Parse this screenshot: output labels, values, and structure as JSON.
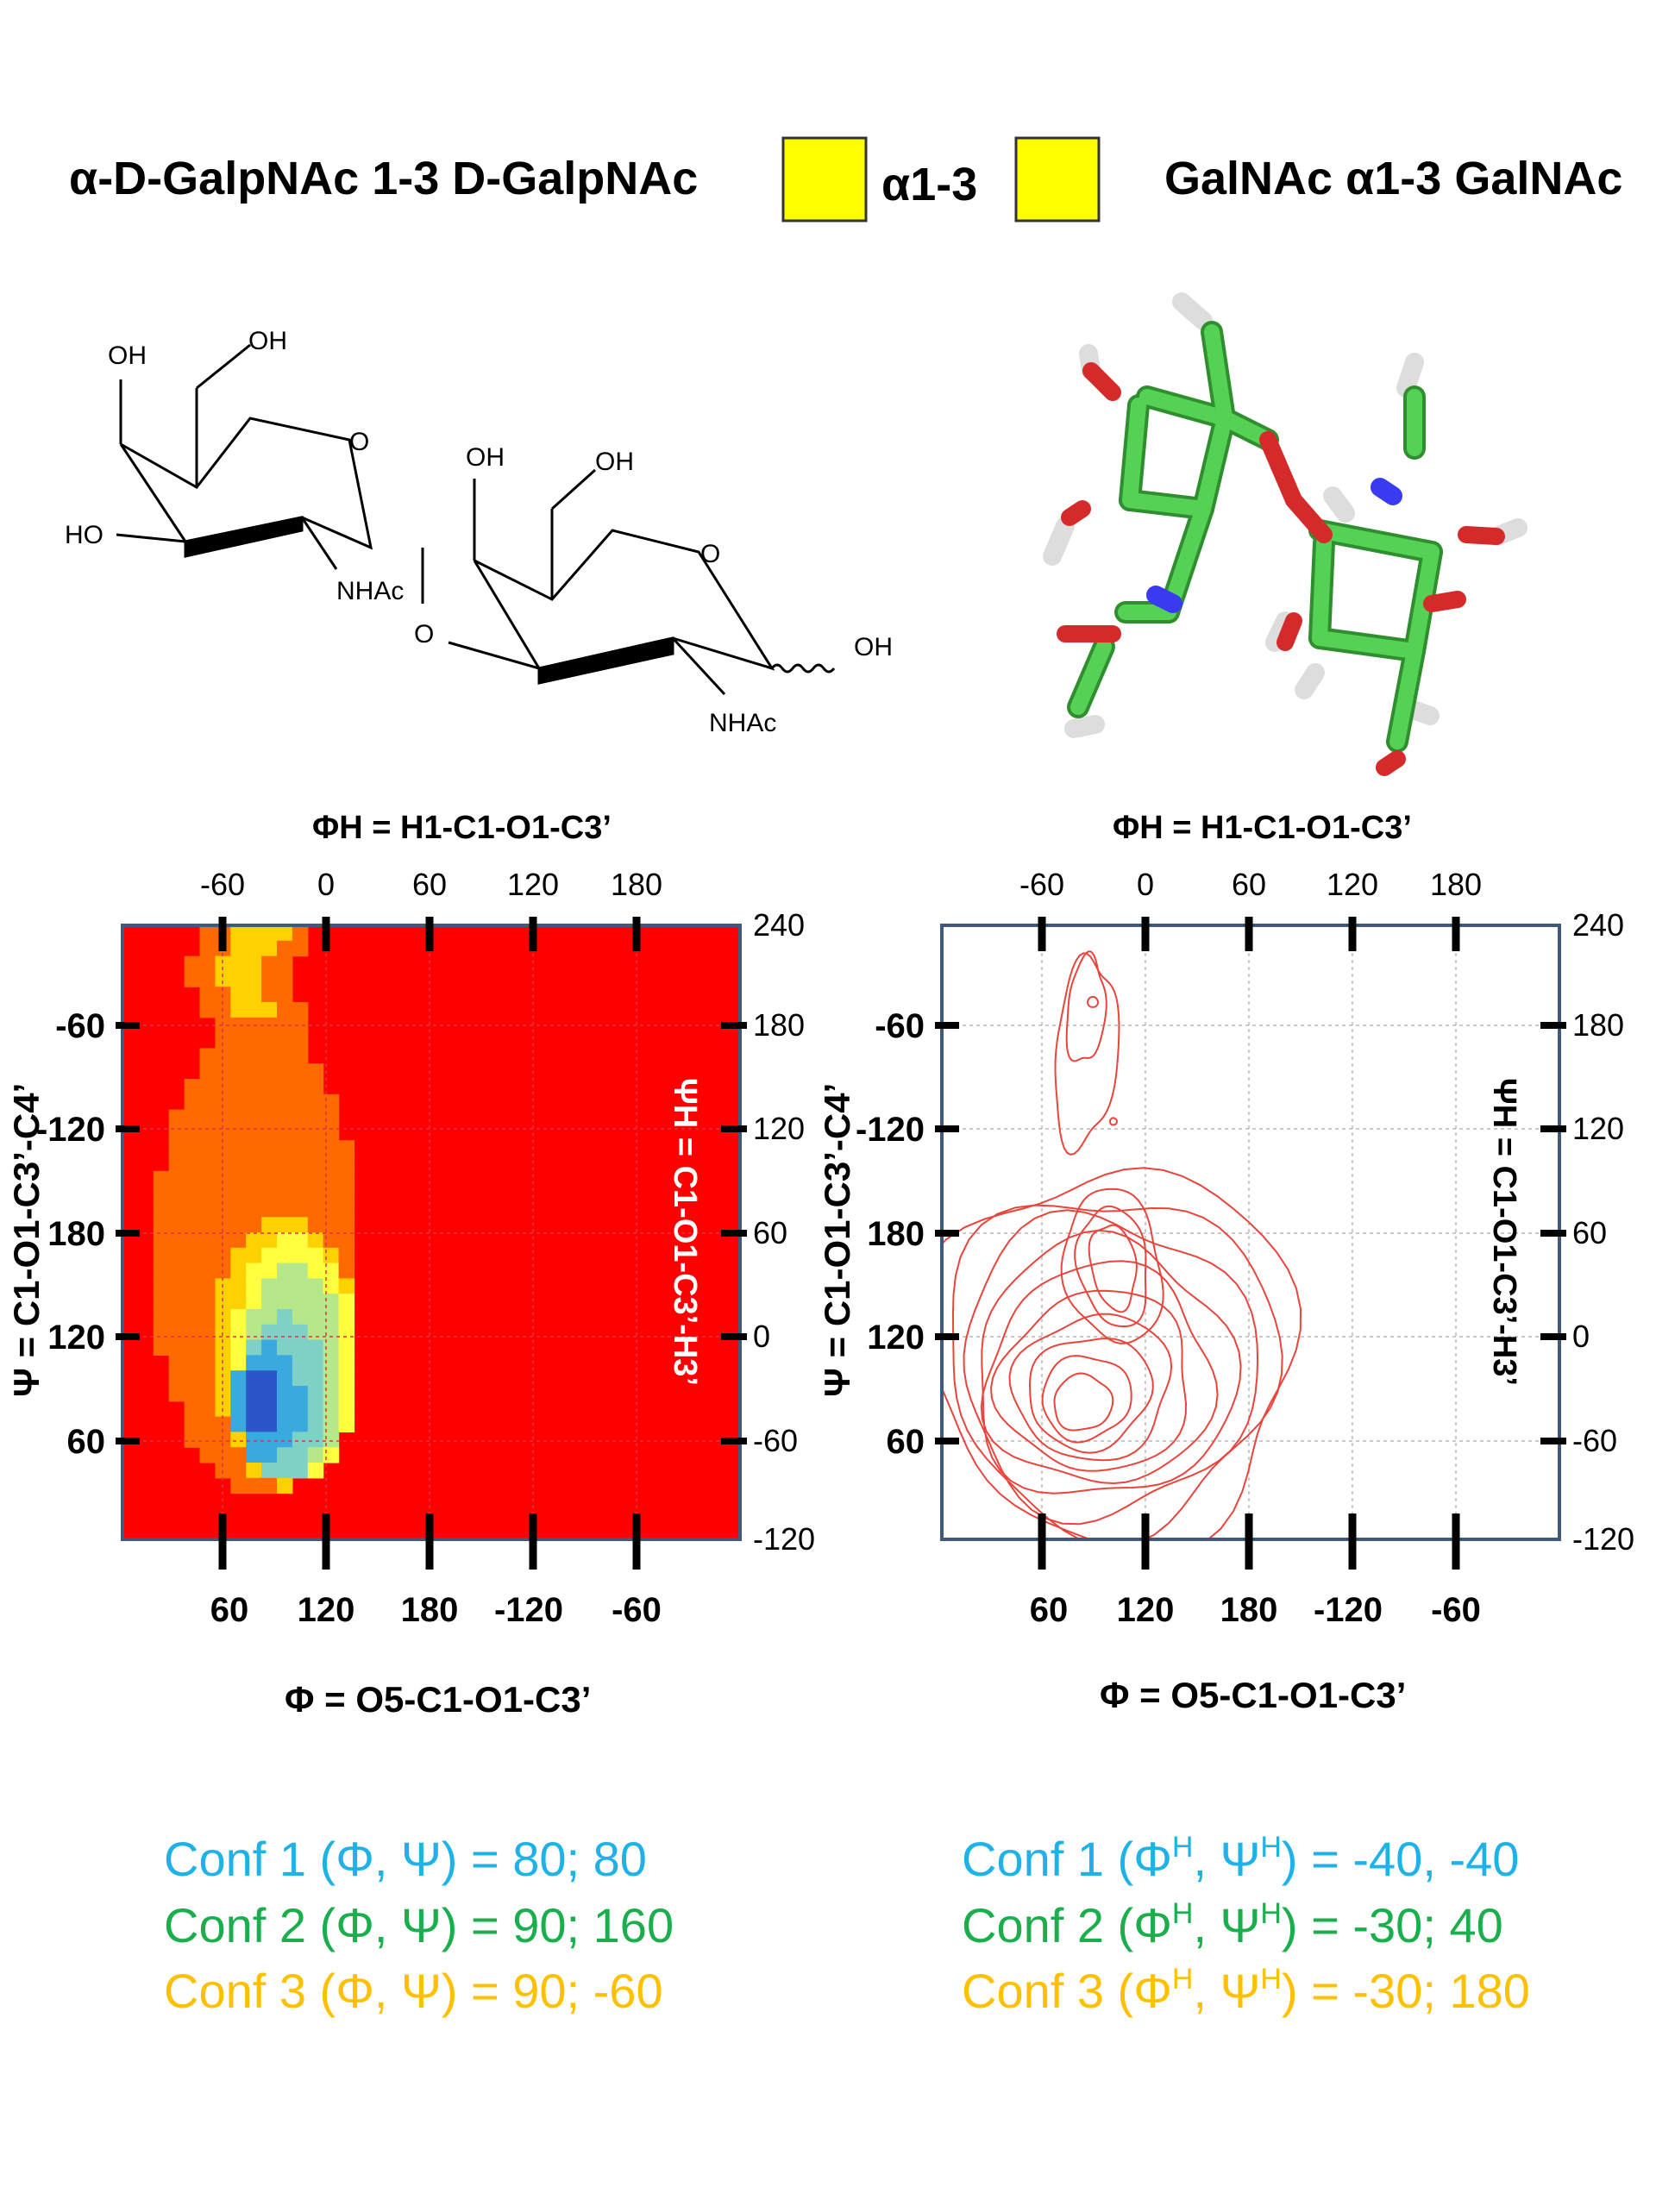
{
  "header": {
    "left_title": "α-D-GalpNAc 1-3 D-GalpNAc",
    "linkage": "α1-3",
    "right_title": "GalNAc α1-3 GalNAc",
    "box_color": "#ffff00"
  },
  "structure": {
    "labels": [
      "OH",
      "OH",
      "O",
      "HO",
      "NHAc",
      "O",
      "OH",
      "OH",
      "O",
      "OH",
      "NHAc"
    ]
  },
  "top_axis_title": "ΦH = H1-C1-O1-C3’",
  "top_axis_title_sup": "H",
  "right_axis_title": "ΨH = C1-O1-C3’-H3’",
  "left_axis_title": "Ψ = C1-O1-C3’-C4’",
  "bottom_axis_title": "Φ = O5-C1-O1-C3’",
  "chart_data": [
    {
      "type": "heatmap",
      "title": "",
      "x_label": "Φ = O5-C1-O1-C3’",
      "y_label": "Ψ = C1-O1-C3’-C4’",
      "x2_label": "ΦH = H1-C1-O1-C3’",
      "y2_label": "ΨH = C1-O1-C3’-H3’",
      "x_ticks": [
        "60",
        "120",
        "180",
        "-120",
        "-60"
      ],
      "y_ticks": [
        "60",
        "120",
        "180",
        "-120",
        "-60"
      ],
      "x2_ticks": [
        "-60",
        "0",
        "60",
        "120",
        "180"
      ],
      "y2_ticks": [
        "240",
        "180",
        "120",
        "60",
        "0",
        "-60",
        "-120"
      ],
      "xlim": [
        0,
        360
      ],
      "ylim": [
        0,
        360
      ],
      "background_color": "#ff0000",
      "regions": [
        {
          "level": 1,
          "color": "#ff6a00",
          "center": [
            78,
            165
          ],
          "spread": [
            60,
            140
          ]
        },
        {
          "level": 2,
          "color": "#ffd100",
          "center": [
            95,
            110
          ],
          "spread": [
            42,
            80
          ]
        },
        {
          "level": 3,
          "color": "#ffff40",
          "center": [
            100,
            105
          ],
          "spread": [
            36,
            72
          ]
        },
        {
          "level": 4,
          "color": "#b6e88a",
          "center": [
            100,
            100
          ],
          "spread": [
            30,
            62
          ]
        },
        {
          "level": 5,
          "color": "#7fd1c6",
          "center": [
            95,
            85
          ],
          "spread": [
            26,
            48
          ]
        },
        {
          "level": 6,
          "color": "#3aa9df",
          "center": [
            85,
            80
          ],
          "spread": [
            20,
            34
          ]
        },
        {
          "level": 7,
          "color": "#2b55c8",
          "center": [
            82,
            80
          ],
          "spread": [
            12,
            20
          ]
        }
      ],
      "grid": true
    },
    {
      "type": "contour",
      "title": "",
      "x_label": "Φ = O5-C1-O1-C3’",
      "y_label": "Ψ = C1-O1-C3’-C4’",
      "x2_label": "ΦH = H1-C1-O1-C3’",
      "y2_label": "ΨH = C1-O1-C3’-H3’",
      "x_ticks": [
        "60",
        "120",
        "180",
        "-120",
        "-60"
      ],
      "y_ticks": [
        "60",
        "120",
        "180",
        "-120",
        "-60"
      ],
      "x2_ticks": [
        "-60",
        "0",
        "60",
        "120",
        "180"
      ],
      "y2_ticks": [
        "240",
        "180",
        "120",
        "60",
        "0",
        "-60",
        "-120"
      ],
      "xlim": [
        0,
        360
      ],
      "ylim": [
        0,
        360
      ],
      "line_color": "#e8453c",
      "minima": [
        [
          82,
          80
        ],
        [
          100,
          160
        ],
        [
          88,
          300
        ]
      ],
      "grid": true
    }
  ],
  "conformers": {
    "left": [
      {
        "text": "Conf 1 (Φ, Ψ) = 80; 80",
        "color": "#1fb2e8"
      },
      {
        "text": "Conf 2 (Φ, Ψ) = 90; 160",
        "color": "#1aae4c"
      },
      {
        "text": "Conf 3 (Φ, Ψ) = 90; -60",
        "color": "#ffc000"
      }
    ],
    "right": [
      {
        "prefix": "Conf 1 (Φ",
        "mid": ", Ψ",
        "suffix": ") = -40, -40",
        "sup": "H",
        "color": "#1fb2e8"
      },
      {
        "prefix": "Conf 2 (Φ",
        "mid": ", Ψ",
        "suffix": ") = -30; 40",
        "sup": "H",
        "color": "#1aae4c"
      },
      {
        "prefix": "Conf 3 (Φ",
        "mid": ", Ψ",
        "suffix": ") = -30; 180",
        "sup": "H",
        "color": "#ffc000"
      }
    ]
  }
}
